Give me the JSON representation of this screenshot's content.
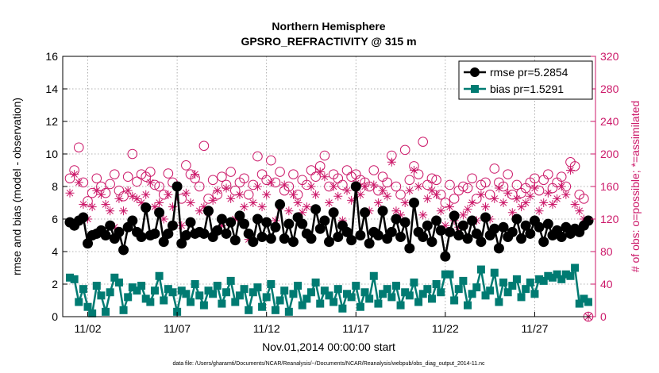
{
  "chart_data": {
    "type": "line",
    "title": "Northern Hemisphere",
    "subtitle": "GPSRO_REFRACTIVITY @ 315 m",
    "ylabel": "rmse and bias (model - observation)",
    "y2label": "# of obs: o=possible; *=assimilated",
    "xlabel": "Nov.01,2014 00:00:00 start",
    "footnote": "data file: /Users/gharamti/Documents/NCAR/Reanalysis/~/Documents/NCAR/Reanalysis/webpub/obs_diag_output_2014-11.nc",
    "ylim": [
      0,
      16
    ],
    "y2lim": [
      0,
      320
    ],
    "xlim": [
      0.6,
      30.4
    ],
    "yticks": [
      0,
      2,
      4,
      6,
      8,
      10,
      12,
      14,
      16
    ],
    "y2ticks": [
      0,
      40,
      80,
      120,
      160,
      200,
      240,
      280,
      320
    ],
    "xticks": [
      {
        "x": 2,
        "label": "11/02"
      },
      {
        "x": 7,
        "label": "11/07"
      },
      {
        "x": 12,
        "label": "11/12"
      },
      {
        "x": 17,
        "label": "11/17"
      },
      {
        "x": 22,
        "label": "11/22"
      },
      {
        "x": 27,
        "label": "11/27"
      }
    ],
    "grid": true,
    "legend_location": "top-right",
    "colors": {
      "rmse": "#000000",
      "bias": "#007b72",
      "obs": "#cc1a6a"
    },
    "series": [
      {
        "name": "rmse pr=5.2854",
        "axis": "left",
        "x": [
          1.0,
          1.25,
          1.5,
          1.75,
          2.0,
          2.25,
          2.5,
          2.75,
          3.0,
          3.25,
          3.5,
          3.75,
          4.0,
          4.25,
          4.5,
          4.75,
          5.0,
          5.25,
          5.5,
          5.75,
          6.0,
          6.25,
          6.5,
          6.75,
          7.0,
          7.25,
          7.5,
          7.75,
          8.0,
          8.25,
          8.5,
          8.75,
          9.0,
          9.25,
          9.5,
          9.75,
          10.0,
          10.25,
          10.5,
          10.75,
          11.0,
          11.25,
          11.5,
          11.75,
          12.0,
          12.25,
          12.5,
          12.75,
          13.0,
          13.25,
          13.5,
          13.75,
          14.0,
          14.25,
          14.5,
          14.75,
          15.0,
          15.25,
          15.5,
          15.75,
          16.0,
          16.25,
          16.5,
          16.75,
          17.0,
          17.25,
          17.5,
          17.75,
          18.0,
          18.25,
          18.5,
          18.75,
          19.0,
          19.25,
          19.5,
          19.75,
          20.0,
          20.25,
          20.5,
          20.75,
          21.0,
          21.25,
          21.5,
          21.75,
          22.0,
          22.25,
          22.5,
          22.75,
          23.0,
          23.25,
          23.5,
          23.75,
          24.0,
          24.25,
          24.5,
          24.75,
          25.0,
          25.25,
          25.5,
          25.75,
          26.0,
          26.25,
          26.5,
          26.75,
          27.0,
          27.25,
          27.5,
          27.75,
          28.0,
          28.25,
          28.5,
          28.75,
          29.0,
          29.25,
          29.5,
          29.75,
          30.0
        ],
        "values": [
          5.8,
          5.6,
          5.9,
          6.1,
          4.5,
          5.0,
          5.1,
          5.3,
          5.0,
          5.6,
          4.8,
          5.2,
          4.1,
          5.5,
          5.9,
          5.2,
          4.9,
          6.7,
          5.0,
          5.1,
          6.4,
          4.6,
          5.1,
          5.6,
          8.0,
          4.5,
          5.0,
          5.8,
          5.1,
          5.2,
          5.1,
          6.5,
          4.9,
          5.3,
          6.0,
          5.1,
          5.8,
          4.7,
          6.2,
          5.7,
          5.1,
          4.6,
          6.0,
          4.9,
          5.8,
          4.8,
          5.5,
          6.9,
          4.8,
          5.7,
          4.6,
          6.1,
          5.7,
          5.1,
          4.8,
          6.6,
          5.4,
          5.9,
          4.6,
          6.4,
          4.9,
          5.6,
          5.2,
          4.7,
          8.0,
          5.0,
          6.4,
          4.5,
          5.2,
          5.0,
          6.5,
          4.8,
          5.2,
          6.0,
          4.9,
          5.8,
          4.2,
          7.0,
          5.2,
          4.9,
          5.6,
          4.6,
          5.9,
          5.3,
          3.7,
          5.2,
          6.2,
          5.0,
          5.6,
          4.8,
          5.9,
          5.1,
          4.6,
          6.1,
          5.0,
          5.4,
          4.2,
          5.5,
          4.9,
          5.2,
          6.0,
          4.8,
          5.6,
          5.1,
          5.9,
          5.5,
          4.6,
          5.7,
          5.0,
          5.3,
          4.9,
          5.5,
          5.1,
          5.4,
          5.2,
          5.6,
          5.9
        ]
      },
      {
        "name": "bias pr=1.5291",
        "axis": "left",
        "x": [
          1.0,
          1.25,
          1.5,
          1.75,
          2.0,
          2.25,
          2.5,
          2.75,
          3.0,
          3.25,
          3.5,
          3.75,
          4.0,
          4.25,
          4.5,
          4.75,
          5.0,
          5.25,
          5.5,
          5.75,
          6.0,
          6.25,
          6.5,
          6.75,
          7.0,
          7.25,
          7.5,
          7.75,
          8.0,
          8.25,
          8.5,
          8.75,
          9.0,
          9.25,
          9.5,
          9.75,
          10.0,
          10.25,
          10.5,
          10.75,
          11.0,
          11.25,
          11.5,
          11.75,
          12.0,
          12.25,
          12.5,
          12.75,
          13.0,
          13.25,
          13.5,
          13.75,
          14.0,
          14.25,
          14.5,
          14.75,
          15.0,
          15.25,
          15.5,
          15.75,
          16.0,
          16.25,
          16.5,
          16.75,
          17.0,
          17.25,
          17.5,
          17.75,
          18.0,
          18.25,
          18.5,
          18.75,
          19.0,
          19.25,
          19.5,
          19.75,
          20.0,
          20.25,
          20.5,
          20.75,
          21.0,
          21.25,
          21.5,
          21.75,
          22.0,
          22.25,
          22.5,
          22.75,
          23.0,
          23.25,
          23.5,
          23.75,
          24.0,
          24.25,
          24.5,
          24.75,
          25.0,
          25.25,
          25.5,
          25.75,
          26.0,
          26.25,
          26.5,
          26.75,
          27.0,
          27.25,
          27.5,
          27.75,
          28.0,
          28.25,
          28.5,
          28.75,
          29.0,
          29.25,
          29.5,
          29.75,
          30.0
        ],
        "values": [
          2.4,
          2.3,
          0.9,
          1.7,
          0.6,
          0.2,
          1.9,
          1.3,
          0.3,
          1.5,
          2.4,
          2.1,
          0.4,
          1.2,
          1.8,
          1.6,
          1.9,
          1.1,
          0.9,
          1.6,
          2.5,
          1.0,
          1.7,
          1.5,
          0.3,
          1.6,
          1.4,
          0.9,
          2.0,
          1.3,
          0.7,
          1.6,
          1.4,
          1.9,
          0.8,
          1.5,
          2.2,
          0.9,
          1.3,
          1.7,
          0.4,
          1.5,
          1.8,
          0.6,
          1.2,
          2.0,
          0.4,
          1.0,
          1.6,
          0.3,
          1.4,
          1.9,
          0.7,
          1.1,
          1.5,
          2.1,
          0.8,
          1.6,
          1.3,
          0.9,
          1.7,
          0.5,
          1.4,
          1.2,
          1.9,
          0.6,
          1.5,
          1.1,
          2.5,
          0.8,
          1.4,
          1.7,
          1.2,
          1.9,
          0.7,
          1.5,
          1.3,
          2.1,
          0.9,
          1.4,
          1.7,
          1.1,
          2.0,
          1.5,
          2.6,
          2.6,
          1.0,
          1.7,
          2.2,
          0.7,
          1.4,
          1.8,
          2.9,
          1.3,
          1.6,
          2.7,
          0.9,
          2.1,
          1.5,
          1.9,
          2.3,
          1.2,
          1.7,
          2.1,
          1.4,
          2.3,
          2.2,
          2.5,
          2.4,
          2.6,
          2.3,
          2.6,
          2.5,
          3.0,
          0.8,
          1.1,
          0.9
        ]
      },
      {
        "name": "possible",
        "axis": "right",
        "marker": "circle",
        "x": [
          1.0,
          1.25,
          1.5,
          1.75,
          2.0,
          2.25,
          2.5,
          2.75,
          3.0,
          3.25,
          3.5,
          3.75,
          4.0,
          4.25,
          4.5,
          4.75,
          5.0,
          5.25,
          5.5,
          5.75,
          6.0,
          6.25,
          6.5,
          6.75,
          7.0,
          7.25,
          7.5,
          7.75,
          8.0,
          8.25,
          8.5,
          8.75,
          9.0,
          9.25,
          9.5,
          9.75,
          10.0,
          10.25,
          10.5,
          10.75,
          11.0,
          11.25,
          11.5,
          11.75,
          12.0,
          12.25,
          12.5,
          12.75,
          13.0,
          13.25,
          13.5,
          13.75,
          14.0,
          14.25,
          14.5,
          14.75,
          15.0,
          15.25,
          15.5,
          15.75,
          16.0,
          16.25,
          16.5,
          16.75,
          17.0,
          17.25,
          17.5,
          17.75,
          18.0,
          18.25,
          18.5,
          18.75,
          19.0,
          19.25,
          19.5,
          19.75,
          20.0,
          20.25,
          20.5,
          20.75,
          21.0,
          21.25,
          21.5,
          21.75,
          22.0,
          22.25,
          22.5,
          22.75,
          23.0,
          23.25,
          23.5,
          23.75,
          24.0,
          24.25,
          24.5,
          24.75,
          25.0,
          25.25,
          25.5,
          25.75,
          26.0,
          26.25,
          26.5,
          26.75,
          27.0,
          27.25,
          27.5,
          27.75,
          28.0,
          28.25,
          28.5,
          28.75,
          29.0,
          29.25,
          29.5,
          29.75,
          30.0
        ],
        "values": [
          170,
          180,
          208,
          165,
          142,
          152,
          170,
          160,
          152,
          163,
          175,
          155,
          148,
          172,
          200,
          166,
          175,
          172,
          178,
          162,
          160,
          150,
          176,
          165,
          160,
          145,
          186,
          175,
          170,
          160,
          210,
          145,
          168,
          150,
          172,
          162,
          178,
          155,
          165,
          170,
          150,
          162,
          197,
          175,
          168,
          192,
          165,
          178,
          155,
          160,
          175,
          150,
          168,
          162,
          180,
          172,
          185,
          198,
          160,
          175,
          170,
          162,
          180,
          172,
          175,
          168,
          165,
          160,
          180,
          155,
          172,
          165,
          198,
          160,
          150,
          205,
          168,
          185,
          175,
          215,
          162,
          170,
          168,
          150,
          140,
          162,
          145,
          155,
          160,
          158,
          170,
          145,
          162,
          165,
          150,
          182,
          165,
          160,
          175,
          150,
          162,
          152,
          158,
          165,
          170,
          155,
          168,
          175,
          158,
          165,
          172,
          160,
          190,
          185,
          150,
          145,
          0
        ]
      },
      {
        "name": "assimilated",
        "axis": "right",
        "marker": "star",
        "x": [
          1.0,
          1.25,
          1.5,
          1.75,
          2.0,
          2.25,
          2.5,
          2.75,
          3.0,
          3.25,
          3.5,
          3.75,
          4.0,
          4.25,
          4.5,
          4.75,
          5.0,
          5.25,
          5.5,
          5.75,
          6.0,
          6.25,
          6.5,
          6.75,
          7.0,
          7.25,
          7.5,
          7.75,
          8.0,
          8.25,
          8.5,
          8.75,
          9.0,
          9.25,
          9.5,
          9.75,
          10.0,
          10.25,
          10.5,
          10.75,
          11.0,
          11.25,
          11.5,
          11.75,
          12.0,
          12.25,
          12.5,
          12.75,
          13.0,
          13.25,
          13.5,
          13.75,
          14.0,
          14.25,
          14.5,
          14.75,
          15.0,
          15.25,
          15.5,
          15.75,
          16.0,
          16.25,
          16.5,
          16.75,
          17.0,
          17.25,
          17.5,
          17.75,
          18.0,
          18.25,
          18.5,
          18.75,
          19.0,
          19.25,
          19.5,
          19.75,
          20.0,
          20.25,
          20.5,
          20.75,
          21.0,
          21.25,
          21.5,
          21.75,
          22.0,
          22.25,
          22.5,
          22.75,
          23.0,
          23.25,
          23.5,
          23.75,
          24.0,
          24.25,
          24.5,
          24.75,
          25.0,
          25.25,
          25.5,
          25.75,
          26.0,
          26.25,
          26.5,
          26.75,
          27.0,
          27.25,
          27.5,
          27.75,
          28.0,
          28.25,
          28.5,
          28.75,
          29.0,
          29.25,
          29.5,
          29.75,
          30.0
        ],
        "values": [
          152,
          175,
          165,
          138,
          120,
          135,
          155,
          150,
          138,
          130,
          110,
          145,
          130,
          155,
          148,
          145,
          140,
          150,
          165,
          135,
          140,
          120,
          150,
          135,
          162,
          112,
          152,
          140,
          175,
          130,
          135,
          128,
          143,
          155,
          112,
          158,
          145,
          120,
          150,
          135,
          95,
          140,
          160,
          135,
          150,
          165,
          118,
          135,
          162,
          130,
          150,
          140,
          128,
          135,
          160,
          150,
          178,
          172,
          140,
          160,
          148,
          118,
          155,
          143,
          164,
          150,
          160,
          130,
          162,
          140,
          155,
          148,
          190,
          130,
          125,
          140,
          155,
          180,
          160,
          125,
          145,
          155,
          150,
          130,
          112,
          135,
          118,
          110,
          125,
          132,
          140,
          118,
          150,
          135,
          120,
          145,
          158,
          140,
          152,
          128,
          145,
          135,
          140,
          148,
          158,
          130,
          140,
          152,
          138,
          145,
          160,
          150,
          180,
          138,
          130,
          120,
          0
        ]
      }
    ]
  }
}
